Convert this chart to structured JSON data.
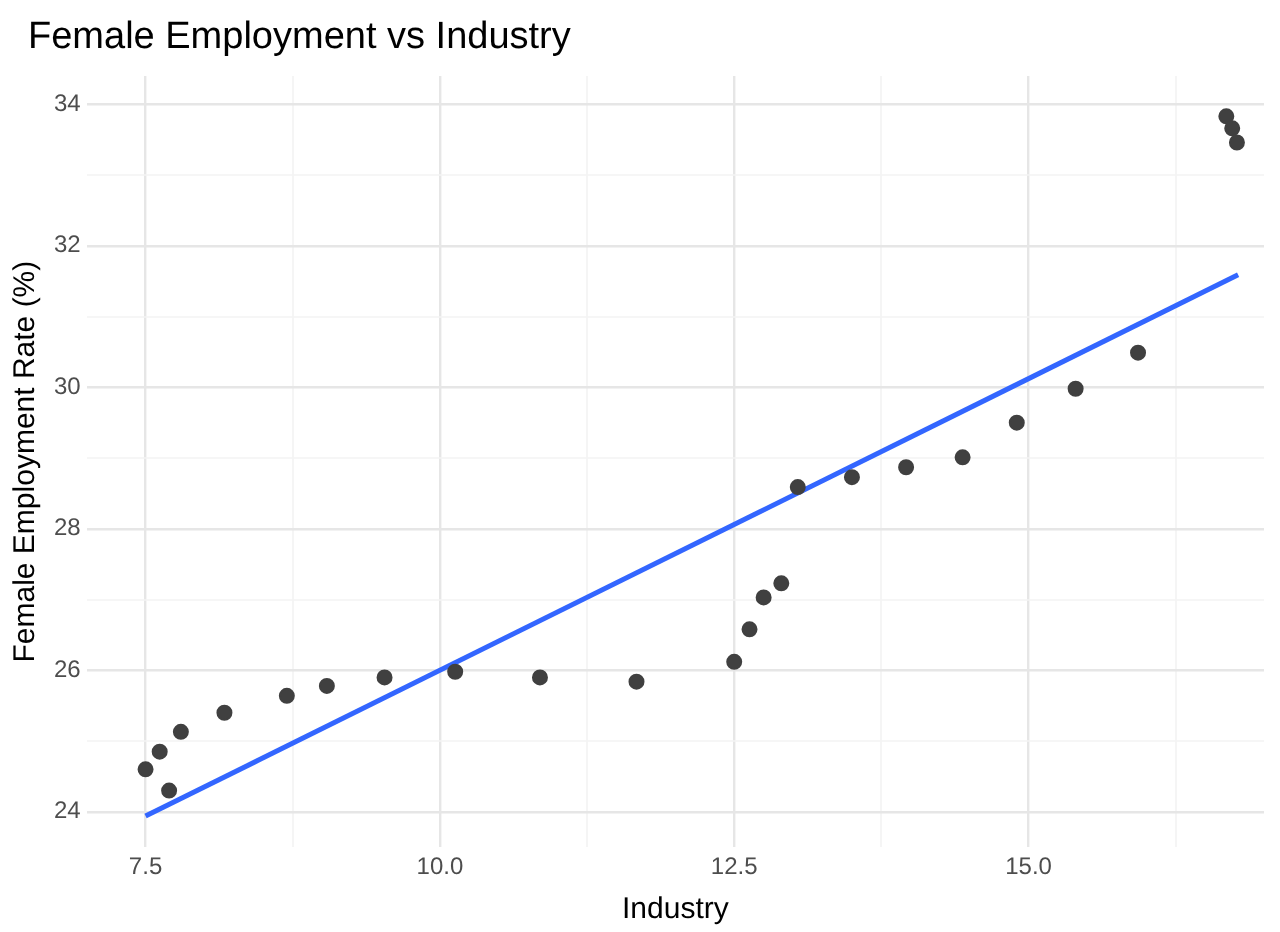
{
  "chart_data": {
    "type": "scatter",
    "title": "Female Employment vs Industry",
    "xlabel": "Industry",
    "ylabel": "Female Employment Rate (%)",
    "series": [
      {
        "type": "scatter",
        "marker": "circle",
        "color": "#404040",
        "x": [
          7.5,
          7.62,
          7.7,
          7.8,
          8.17,
          8.7,
          9.04,
          9.53,
          10.13,
          10.85,
          11.67,
          12.5,
          12.63,
          12.75,
          12.9,
          13.04,
          13.5,
          13.96,
          14.44,
          14.9,
          15.4,
          15.93,
          16.68,
          16.73,
          16.77
        ],
        "values": [
          24.6,
          24.85,
          24.3,
          25.13,
          25.4,
          25.64,
          25.78,
          25.9,
          25.98,
          25.9,
          25.84,
          26.12,
          26.58,
          27.03,
          27.23,
          28.59,
          28.73,
          28.87,
          29.01,
          29.5,
          29.98,
          30.49,
          33.83,
          33.66,
          33.46
        ]
      },
      {
        "type": "line",
        "color": "#3366ff",
        "x": [
          7.5,
          16.78
        ],
        "values": [
          23.94,
          31.59
        ]
      }
    ],
    "xlim": [
      7.0,
      17.0
    ],
    "ylim": [
      23.5,
      34.4
    ],
    "xticks": [
      {
        "value": 8.75,
        "label": null
      },
      {
        "value": 11.25,
        "label": null
      },
      {
        "value": 13.75,
        "label": null
      },
      {
        "value": 16.25,
        "label": null
      },
      {
        "value": 7.5,
        "label": "7.5"
      },
      {
        "value": 10,
        "label": "10.0"
      },
      {
        "value": 12.5,
        "label": "12.5"
      },
      {
        "value": 15,
        "label": "15.0"
      }
    ],
    "yticks": [
      {
        "value": 25,
        "label": null
      },
      {
        "value": 27,
        "label": null
      },
      {
        "value": 29,
        "label": null
      },
      {
        "value": 31,
        "label": null
      },
      {
        "value": 33,
        "label": null
      },
      24,
      26,
      28,
      30,
      32,
      34
    ],
    "grid": true,
    "legend": false
  }
}
